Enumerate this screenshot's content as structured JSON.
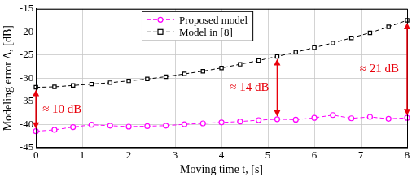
{
  "chart_data": {
    "type": "line",
    "x_label": "Moving time t, [s]",
    "y_label": "Modeling error Δ, [dB]",
    "x": [
      0,
      0.4,
      0.8,
      1.2,
      1.6,
      2.0,
      2.4,
      2.8,
      3.2,
      3.6,
      4.0,
      4.4,
      4.8,
      5.2,
      5.6,
      6.0,
      6.4,
      6.8,
      7.2,
      7.6,
      8.0
    ],
    "series": [
      {
        "name": "Proposed model",
        "color": "#ff00ff",
        "marker": "circle",
        "line_style": "dashed",
        "values": [
          -41.5,
          -41.2,
          -40.6,
          -40.1,
          -40.3,
          -40.5,
          -40.4,
          -40.3,
          -40.0,
          -39.8,
          -39.6,
          -39.4,
          -39.1,
          -38.9,
          -39.0,
          -38.6,
          -38.0,
          -38.7,
          -38.4,
          -38.8,
          -38.6
        ]
      },
      {
        "name": "Model in [8]",
        "color": "#000000",
        "marker": "square",
        "line_style": "dashed",
        "values": [
          -32.0,
          -31.9,
          -31.6,
          -31.3,
          -31.0,
          -30.6,
          -30.2,
          -29.7,
          -29.1,
          -28.5,
          -27.8,
          -27.0,
          -26.2,
          -25.3,
          -24.4,
          -23.4,
          -22.4,
          -21.3,
          -20.2,
          -18.9,
          -17.5
        ]
      }
    ],
    "xlim": [
      0,
      8
    ],
    "xticks": [
      0,
      1,
      2,
      3,
      4,
      5,
      6,
      7,
      8
    ],
    "ylim": [
      -45,
      -15
    ],
    "yticks": [
      -45,
      -40,
      -35,
      -30,
      -25,
      -20,
      -15
    ],
    "grid": true,
    "legend": "upper center",
    "annotations": [
      {
        "text": "≈ 10 dB",
        "x": 0,
        "color": "#e8000b"
      },
      {
        "text": "≈ 14 dB",
        "x": 5.2,
        "color": "#e8000b"
      },
      {
        "text": "≈ 21 dB",
        "x": 8.0,
        "color": "#e8000b"
      }
    ]
  }
}
